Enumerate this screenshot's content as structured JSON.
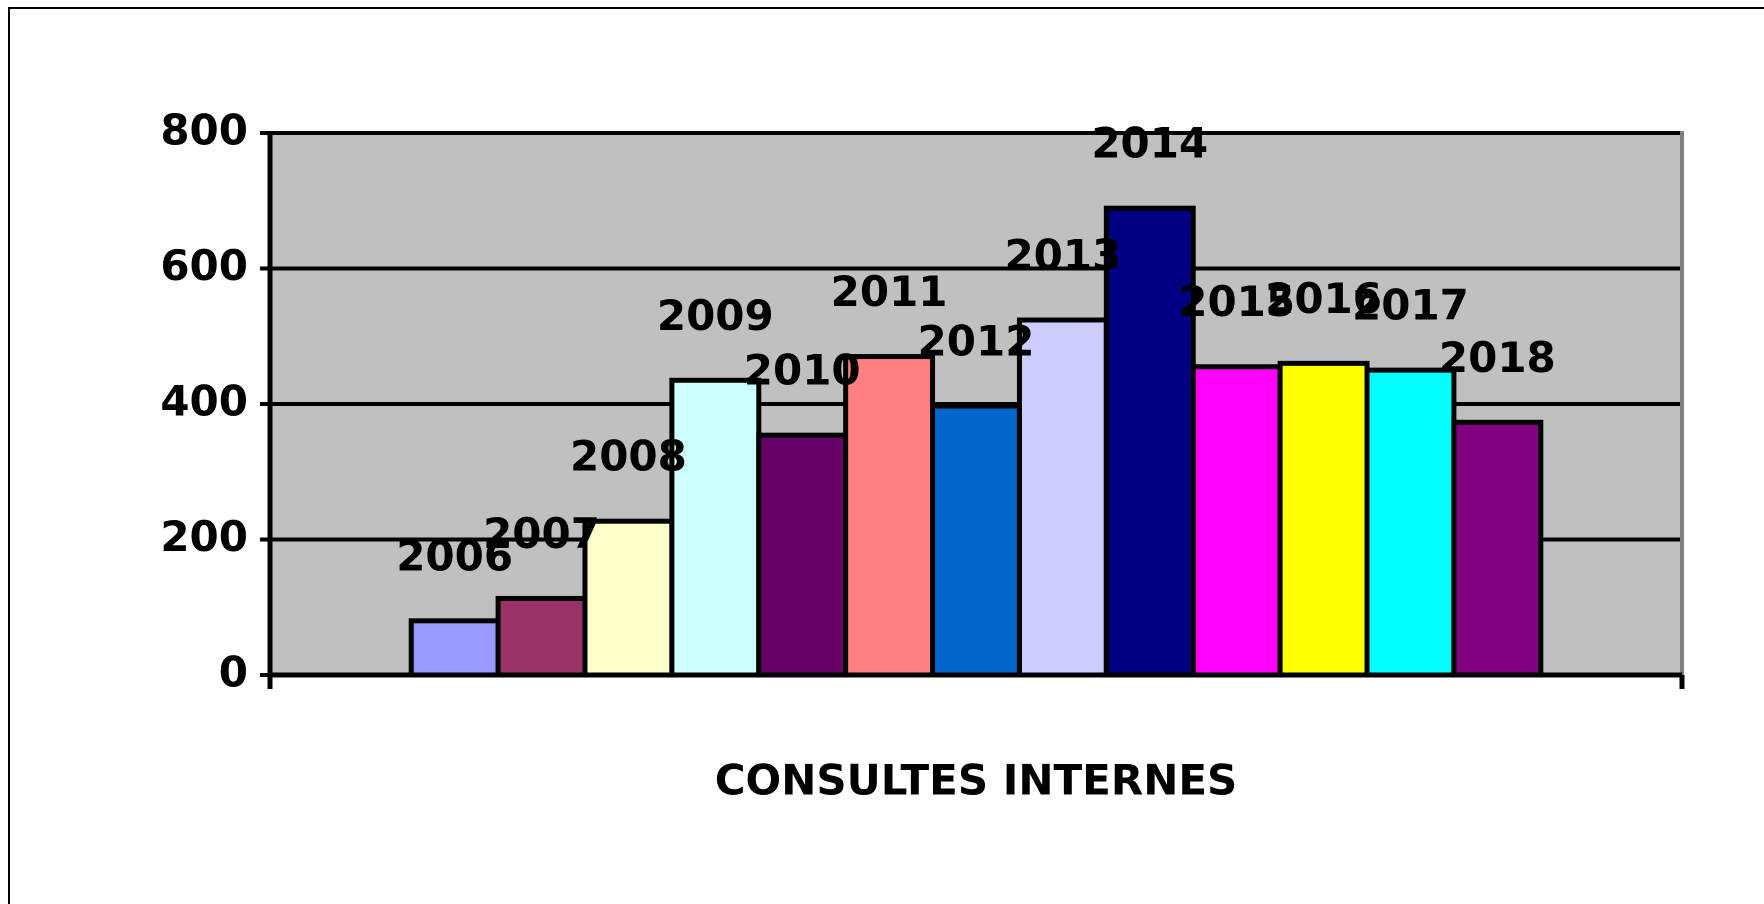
{
  "chart_data": {
    "type": "bar",
    "categories": [
      "CONSULTES INTERNES"
    ],
    "series": [
      {
        "name": "2006",
        "color": "#9999ff",
        "values": [
          80
        ]
      },
      {
        "name": "2007",
        "color": "#993366",
        "values": [
          113
        ]
      },
      {
        "name": "2008",
        "color": "#ffffcc",
        "values": [
          227
        ]
      },
      {
        "name": "2009",
        "color": "#ccffff",
        "values": [
          435
        ]
      },
      {
        "name": "2010",
        "color": "#660066",
        "values": [
          354
        ]
      },
      {
        "name": "2011",
        "color": "#ff8080",
        "values": [
          470
        ]
      },
      {
        "name": "2012",
        "color": "#0066cc",
        "values": [
          397
        ]
      },
      {
        "name": "2013",
        "color": "#ccccff",
        "values": [
          524
        ]
      },
      {
        "name": "2014",
        "color": "#000080",
        "values": [
          689
        ]
      },
      {
        "name": "2015",
        "color": "#ff00ff",
        "values": [
          455
        ]
      },
      {
        "name": "2016",
        "color": "#ffff00",
        "values": [
          460
        ]
      },
      {
        "name": "2017",
        "color": "#00ffff",
        "values": [
          450
        ]
      },
      {
        "name": "2018",
        "color": "#800080",
        "values": [
          373
        ]
      }
    ],
    "ylim": [
      0,
      800
    ],
    "yticks": [
      0,
      200,
      400,
      600,
      800
    ],
    "grid": true
  }
}
